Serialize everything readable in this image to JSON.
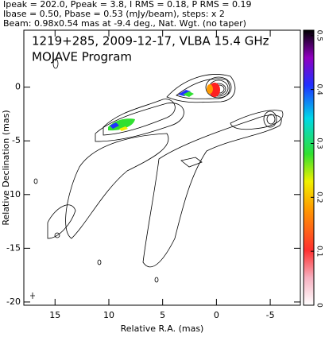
{
  "chart_data": {
    "type": "contour-map",
    "header": [
      "Ipeak = 202.0, Ppeak = 3.8, I RMS = 0.18, P RMS = 0.19",
      "Ibase = 0.50, Pbase = 0.53 (mJy/beam), steps: x 2",
      "Beam: 0.98x0.54 mas at -9.4 deg., Nat. Wgt. (no taper)"
    ],
    "title": "1219+285, 2009-12-17, VLBA 15.4 GHz",
    "subtitle": "MOJAVE Program",
    "xlabel": "Relative R.A. (mas)",
    "ylabel": "Relative Declination (mas)",
    "xlim": [
      17.9,
      -7.8
    ],
    "xticks": [
      15,
      10,
      5,
      0,
      -5
    ],
    "ylim": [
      -20.3,
      5.3
    ],
    "yticks": [
      0,
      -5,
      -10,
      -15,
      -20
    ],
    "clim": [
      0,
      0.51
    ],
    "cticks": [
      0,
      0.1,
      0.2,
      0.3,
      0.4,
      0.5
    ]
  }
}
